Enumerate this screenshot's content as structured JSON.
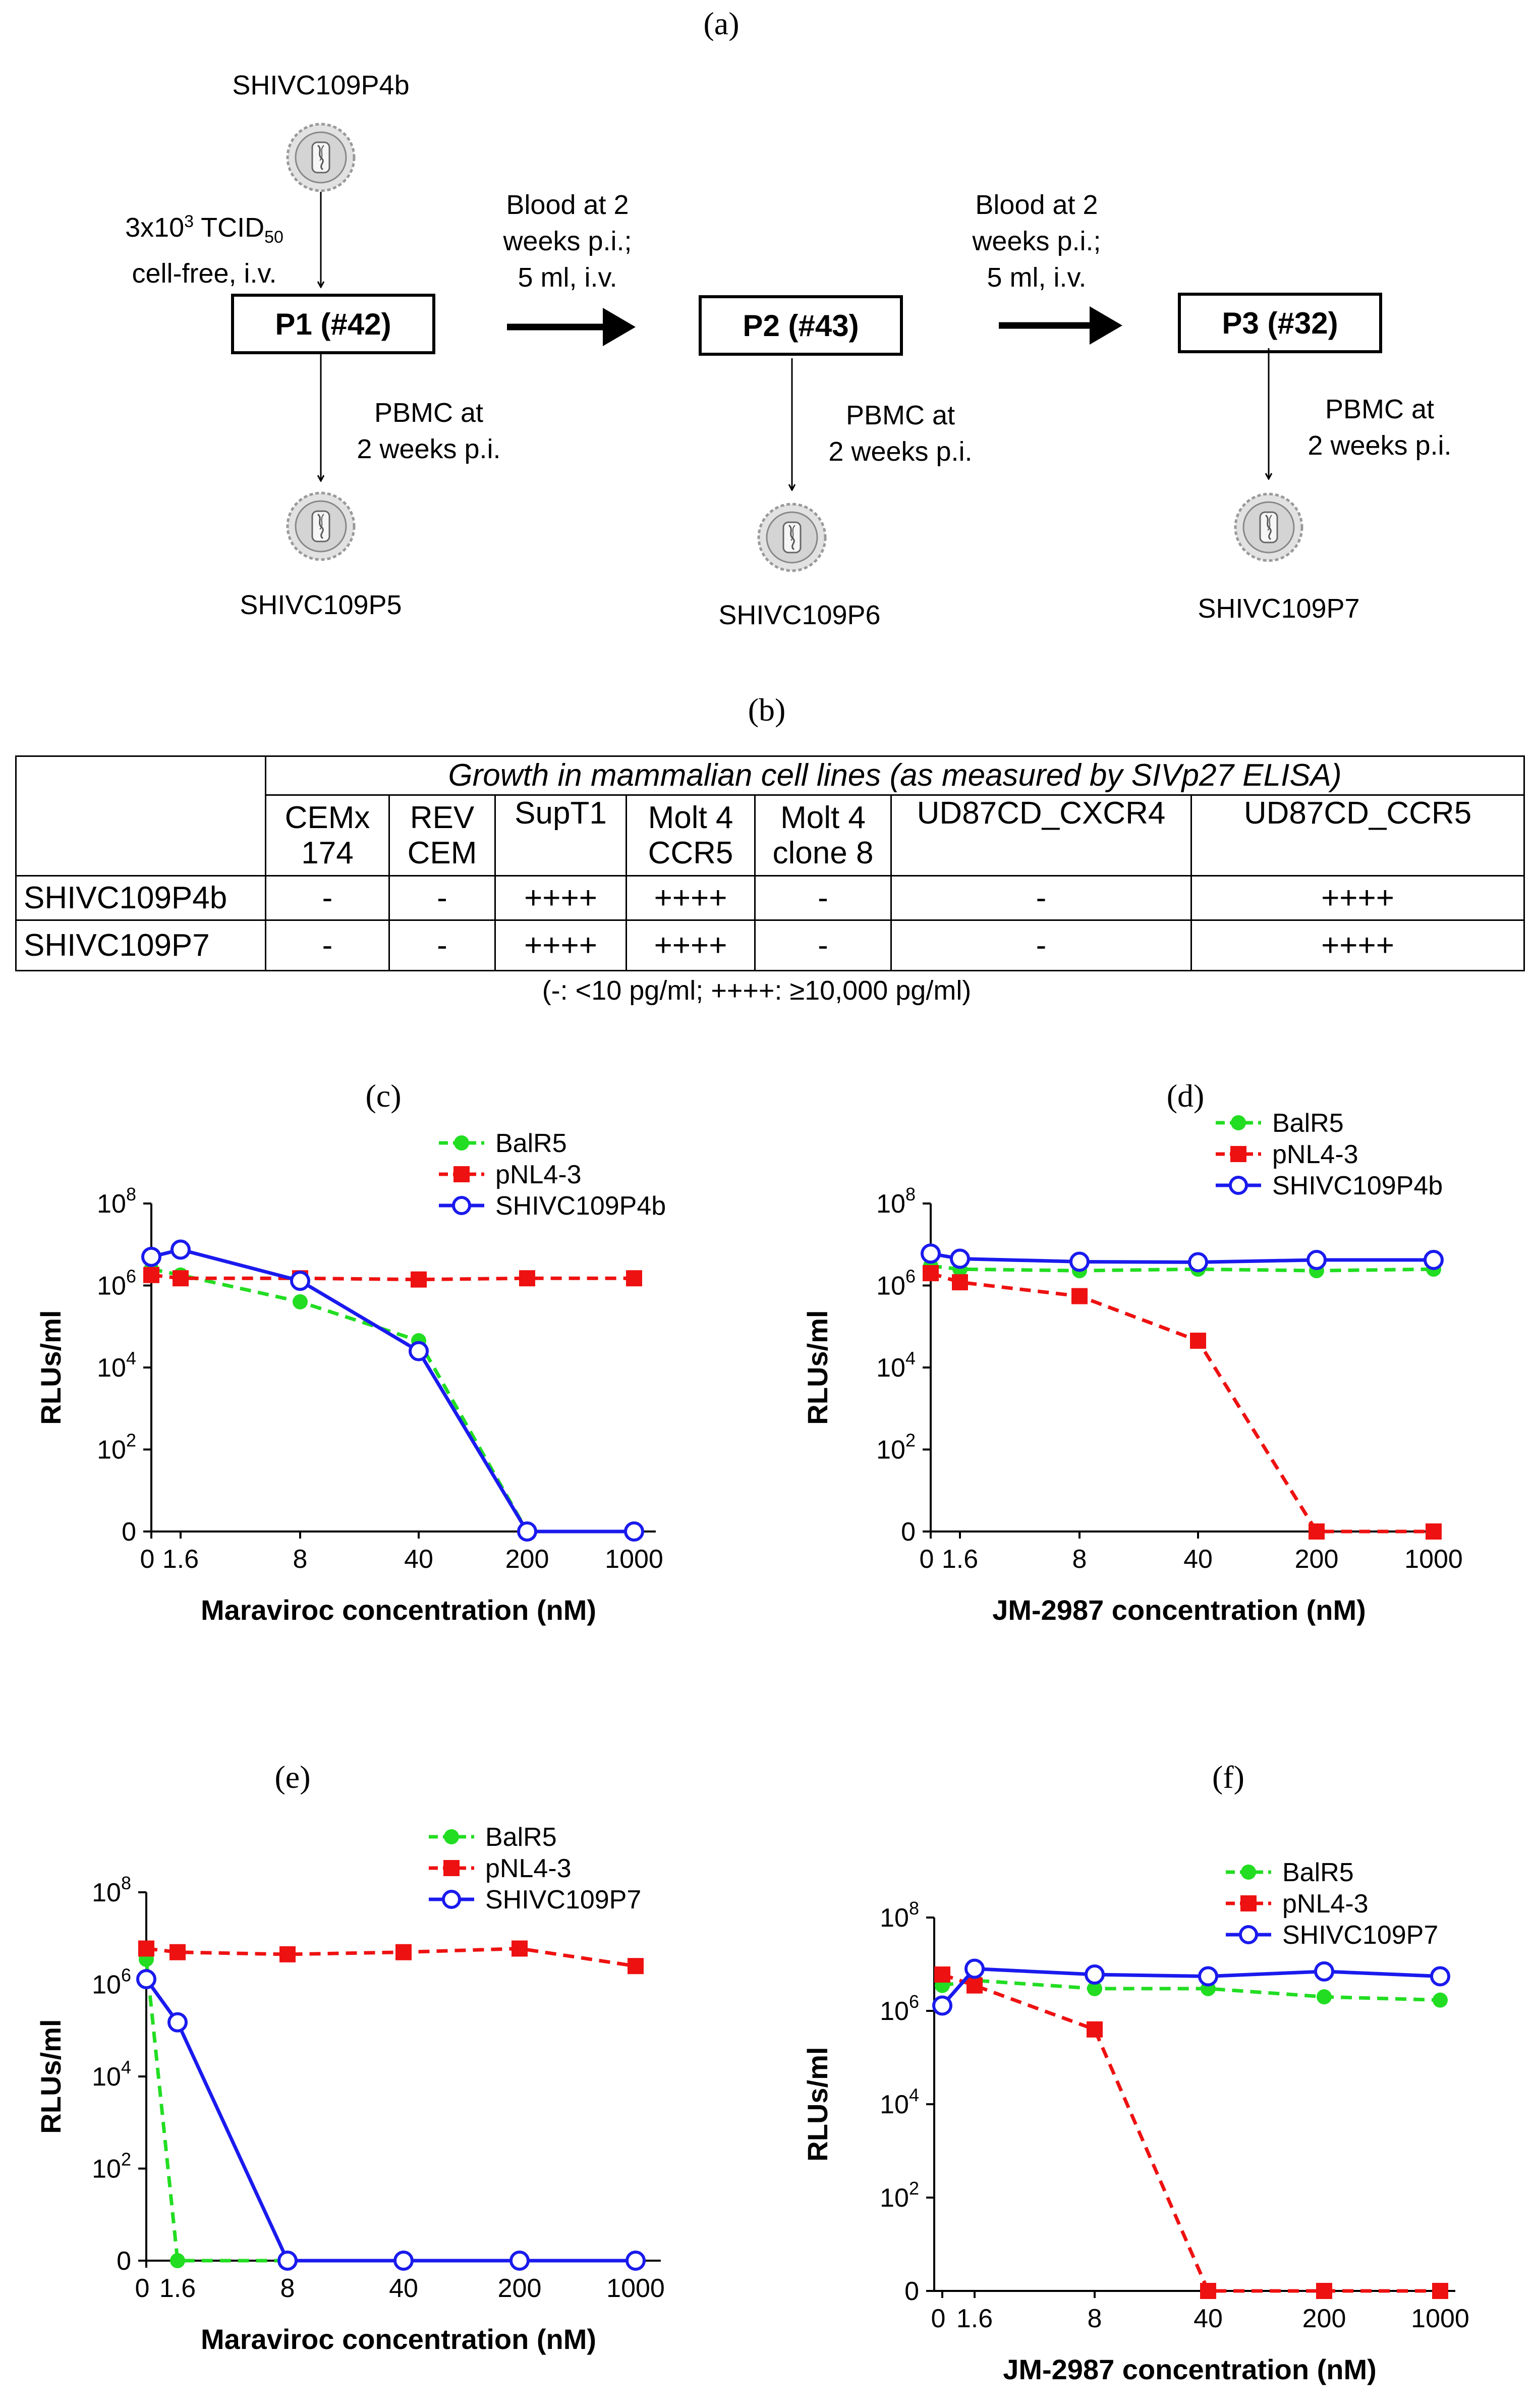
{
  "panel_a": {
    "label": "(a)",
    "source_virus": "SHIVC109P4b",
    "inoculum": {
      "line1_pre": "3x10",
      "line1_sup": "3",
      "line1_mid": " TCID",
      "line1_sub": "50",
      "line2": "cell-free, i.v."
    },
    "passages": [
      {
        "box": "P1 (#42)",
        "pbmc_line1": "PBMC at",
        "pbmc_line2": "2 weeks p.i.",
        "virus": "SHIVC109P5"
      },
      {
        "box": "P2 (#43)",
        "pbmc_line1": "PBMC at",
        "pbmc_line2": "2 weeks p.i.",
        "virus": "SHIVC109P6"
      },
      {
        "box": "P3 (#32)",
        "pbmc_line1": "PBMC at",
        "pbmc_line2": "2 weeks p.i.",
        "virus": "SHIVC109P7"
      }
    ],
    "transfers": [
      {
        "line1": "Blood at 2",
        "line2": "weeks p.i.;",
        "line3": "5 ml, i.v."
      },
      {
        "line1": "Blood at 2",
        "line2": "weeks p.i.;",
        "line3": "5 ml, i.v."
      }
    ]
  },
  "panel_b": {
    "label": "(b)",
    "header": "Growth in mammalian cell lines (as measured by SIVp27 ELISA)",
    "columns": [
      {
        "l1": "CEMx",
        "l2": "174"
      },
      {
        "l1": "REV",
        "l2": "CEM"
      },
      {
        "l1": "SupT1",
        "l2": ""
      },
      {
        "l1": "Molt 4",
        "l2": "CCR5"
      },
      {
        "l1": "Molt 4",
        "l2": "clone 8"
      },
      {
        "l1": "UD87CD_CXCR4",
        "l2": ""
      },
      {
        "l1": "UD87CD_CCR5",
        "l2": ""
      }
    ],
    "rows": [
      {
        "name": "SHIVC109P4b",
        "cells": [
          "-",
          "-",
          "++++",
          "++++",
          "-",
          "-",
          "++++"
        ]
      },
      {
        "name": "SHIVC109P7",
        "cells": [
          "-",
          "-",
          "++++",
          "++++",
          "-",
          "-",
          "++++"
        ]
      }
    ],
    "footnote": "(-: <10 pg/ml; ++++: ≥10,000 pg/ml)"
  },
  "colors": {
    "BalR5": "#22dd22",
    "pNL4-3": "#ee1111",
    "SHIV": "#1a1aee"
  },
  "chart_data": [
    {
      "id": "c",
      "label": "(c)",
      "type": "line",
      "xlabel": "Maraviroc concentration (nM)",
      "ylabel": "RLUs/ml",
      "categories": [
        "0",
        "1.6",
        "8",
        "40",
        "200",
        "1000"
      ],
      "yticks": [
        {
          "base": "0",
          "exp": ""
        },
        {
          "base": "10",
          "exp": "2"
        },
        {
          "base": "10",
          "exp": "4"
        },
        {
          "base": "10",
          "exp": "6"
        },
        {
          "base": "10",
          "exp": "8"
        }
      ],
      "ylim_log": [
        0,
        8
      ],
      "series": [
        {
          "name": "BalR5",
          "style": "green",
          "values": [
            2500000,
            1800000,
            400000,
            45000,
            0,
            0
          ]
        },
        {
          "name": "pNL4-3",
          "style": "red",
          "values": [
            1800000,
            1500000,
            1500000,
            1400000,
            1500000,
            1500000
          ]
        },
        {
          "name": "SHIVC109P4b",
          "style": "blue",
          "values": [
            5000000,
            7500000,
            1300000,
            25000,
            0,
            0
          ]
        }
      ]
    },
    {
      "id": "d",
      "label": "(d)",
      "type": "line",
      "xlabel": "JM-2987 concentration (nM)",
      "ylabel": "RLUs/ml",
      "categories": [
        "0",
        "1.6",
        "8",
        "40",
        "200",
        "1000"
      ],
      "yticks": [
        {
          "base": "0",
          "exp": ""
        },
        {
          "base": "10",
          "exp": "2"
        },
        {
          "base": "10",
          "exp": "4"
        },
        {
          "base": "10",
          "exp": "6"
        },
        {
          "base": "10",
          "exp": "8"
        }
      ],
      "ylim_log": [
        0,
        8
      ],
      "series": [
        {
          "name": "BalR5",
          "style": "green",
          "values": [
            3000000,
            2500000,
            2300000,
            2500000,
            2300000,
            2500000
          ]
        },
        {
          "name": "pNL4-3",
          "style": "red",
          "values": [
            2000000,
            1200000,
            550000,
            45000,
            0,
            0
          ]
        },
        {
          "name": "SHIVC109P4b",
          "style": "blue",
          "values": [
            6000000,
            4500000,
            3800000,
            3700000,
            4200000,
            4200000
          ]
        }
      ]
    },
    {
      "id": "e",
      "label": "(e)",
      "type": "line",
      "xlabel": "Maraviroc concentration (nM)",
      "ylabel": "RLUs/ml",
      "categories": [
        "0",
        "1.6",
        "8",
        "40",
        "200",
        "1000"
      ],
      "yticks": [
        {
          "base": "0",
          "exp": ""
        },
        {
          "base": "10",
          "exp": "2"
        },
        {
          "base": "10",
          "exp": "4"
        },
        {
          "base": "10",
          "exp": "6"
        },
        {
          "base": "10",
          "exp": "8"
        }
      ],
      "ylim_log": [
        0,
        8
      ],
      "series": [
        {
          "name": "BalR5",
          "style": "green",
          "values": [
            3500000,
            0,
            0,
            0,
            0,
            0
          ]
        },
        {
          "name": "pNL4-3",
          "style": "red",
          "values": [
            6000000,
            5000000,
            4500000,
            5000000,
            6000000,
            2500000
          ]
        },
        {
          "name": "SHIVC109P7",
          "style": "blue",
          "values": [
            1300000,
            150000,
            0,
            0,
            0,
            0
          ]
        }
      ]
    },
    {
      "id": "f",
      "label": "(f)",
      "type": "line",
      "xlabel": "JM-2987 concentration (nM)",
      "ylabel": "RLUs/ml",
      "categories": [
        "0",
        "1.6",
        "8",
        "40",
        "200",
        "1000"
      ],
      "yticks": [
        {
          "base": "0",
          "exp": ""
        },
        {
          "base": "10",
          "exp": "2"
        },
        {
          "base": "10",
          "exp": "4"
        },
        {
          "base": "10",
          "exp": "6"
        },
        {
          "base": "10",
          "exp": "8"
        }
      ],
      "ylim_log": [
        0,
        8
      ],
      "series": [
        {
          "name": "BalR5",
          "style": "green",
          "values": [
            3500000,
            4500000,
            3000000,
            3000000,
            2000000,
            1700000
          ]
        },
        {
          "name": "pNL4-3",
          "style": "red",
          "values": [
            6000000,
            3500000,
            400000,
            0,
            0,
            0
          ]
        },
        {
          "name": "SHIVC109P7",
          "style": "blue",
          "values": [
            1300000,
            8000000,
            6000000,
            5500000,
            7000000,
            5500000
          ]
        }
      ]
    }
  ]
}
